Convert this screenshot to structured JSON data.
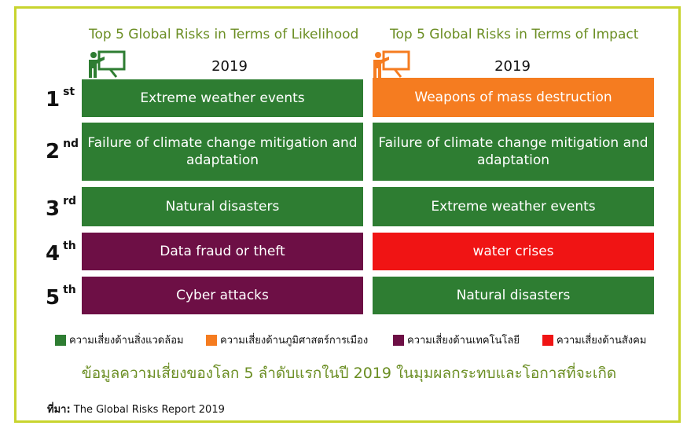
{
  "left_column": {
    "title": "Top 5 Global Risks in Terms of Likelihood",
    "year": "2019",
    "items": [
      {
        "text": "Extreme weather events",
        "category": "environmental"
      },
      {
        "text": "Failure of climate change mitigation and adaptation",
        "category": "environmental"
      },
      {
        "text": "Natural disasters",
        "category": "environmental"
      },
      {
        "text": "Data fraud or theft",
        "category": "technological"
      },
      {
        "text": "Cyber attacks",
        "category": "technological"
      }
    ]
  },
  "right_column": {
    "title": "Top 5 Global Risks in Terms of Impact",
    "year": "2019",
    "items": [
      {
        "text": "Weapons of mass destruction",
        "category": "geopolitical"
      },
      {
        "text": "Failure of climate change mitigation and adaptation",
        "category": "environmental"
      },
      {
        "text": "Extreme weather events",
        "category": "environmental"
      },
      {
        "text": "water crises",
        "category": "societal"
      },
      {
        "text": "Natural disasters",
        "category": "environmental"
      }
    ]
  },
  "ranks": [
    {
      "num": "1",
      "suffix": "st"
    },
    {
      "num": "2",
      "suffix": "nd"
    },
    {
      "num": "3",
      "suffix": "rd"
    },
    {
      "num": "4",
      "suffix": "th"
    },
    {
      "num": "5",
      "suffix": "th"
    }
  ],
  "colors": {
    "environmental": "#2e7d32",
    "geopolitical": "#f57c20",
    "technological": "#6d0f45",
    "societal": "#f01414",
    "title_green": "#6b8e23",
    "frame": "#c8d42e"
  },
  "icons": {
    "left": "presenter-board-icon",
    "right": "presenter-board-icon"
  },
  "legend": [
    {
      "label": "ความเสี่ยงด้านสิ่งแวดล้อม",
      "color": "#2e7d32"
    },
    {
      "label": "ความเสี่ยงด้านภูมิศาสตร์การเมือง",
      "color": "#f57c20"
    },
    {
      "label": "ความเสี่ยงด้านเทคโนโลยี",
      "color": "#6d0f45"
    },
    {
      "label": "ความเสี่ยงด้านสังคม",
      "color": "#f01414"
    }
  ],
  "caption": "ข้อมูลความเสี่ยงของโลก 5 ลำดับแรกในปี 2019 ในมุมผลกระทบและโอกาสที่จะเกิด",
  "source": {
    "label": "ที่มา:",
    "text": "The Global Risks Report 2019"
  }
}
